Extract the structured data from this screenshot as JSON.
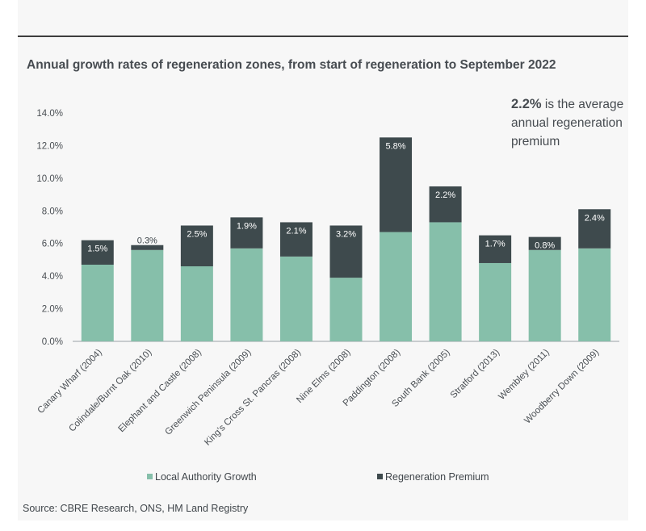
{
  "chart_data": {
    "type": "bar",
    "stacked": true,
    "title": "Annual growth rates of regeneration zones, from start of regeneration to September 2022",
    "categories": [
      "Canary Wharf (2004)",
      "Colindale/Burnt Oak (2010)",
      "Elephant and Castle (2008)",
      "Greenwich Peninsula (2009)",
      "King's Cross St. Pancras (2008)",
      "Nine Elms (2008)",
      "Paddington (2008)",
      "South Bank (2005)",
      "Stratford (2013)",
      "Wembley (2011)",
      "Woodberry Down (2009)"
    ],
    "series": [
      {
        "name": "Local Authority Growth",
        "color": "#86bfaa",
        "values": [
          4.7,
          5.6,
          4.6,
          5.7,
          5.2,
          3.9,
          6.7,
          7.3,
          4.8,
          5.6,
          5.7
        ]
      },
      {
        "name": "Regeneration Premium",
        "color": "#3e4a4d",
        "values": [
          1.5,
          0.3,
          2.5,
          1.9,
          2.1,
          3.2,
          5.8,
          2.2,
          1.7,
          0.8,
          2.4
        ]
      }
    ],
    "data_labels": [
      "1.5%",
      "0.3%",
      "2.5%",
      "1.9%",
      "2.1%",
      "3.2%",
      "5.8%",
      "2.2%",
      "1.7%",
      "0.8%",
      "2.4%"
    ],
    "ylim": [
      0,
      14
    ],
    "yticks": [
      "0.0%",
      "2.0%",
      "4.0%",
      "6.0%",
      "8.0%",
      "10.0%",
      "12.0%",
      "14.0%"
    ],
    "xlabel": "",
    "ylabel": "",
    "legend_position": "bottom",
    "grid": false
  },
  "callout": {
    "value": "2.2%",
    "text": "is the average annual regeneration premium"
  },
  "source": "Source: CBRE Research, ONS, HM Land Registry"
}
